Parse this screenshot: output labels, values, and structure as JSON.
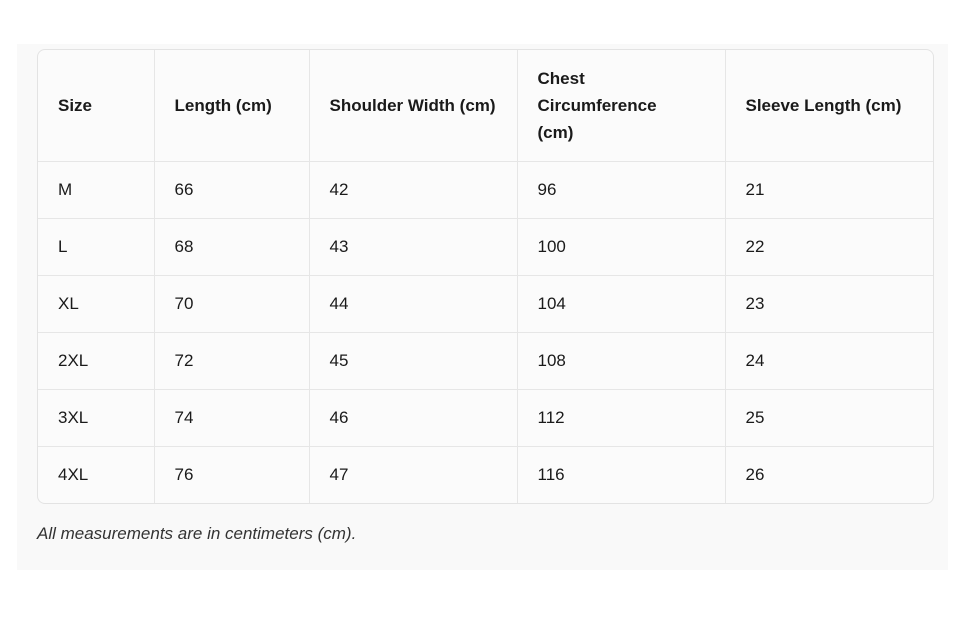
{
  "table": {
    "header": [
      "Size",
      "Length (cm)",
      "Shoulder Width (cm)",
      "Chest Circumference (cm)",
      "Sleeve Length (cm)"
    ],
    "rows": [
      [
        "M",
        "66",
        "42",
        "96",
        "21"
      ],
      [
        "L",
        "68",
        "43",
        "100",
        "22"
      ],
      [
        "XL",
        "70",
        "44",
        "104",
        "23"
      ],
      [
        "2XL",
        "72",
        "45",
        "108",
        "24"
      ],
      [
        "3XL",
        "74",
        "46",
        "112",
        "25"
      ],
      [
        "4XL",
        "76",
        "47",
        "116",
        "26"
      ]
    ]
  },
  "footnote": "All measurements are in centimeters (cm)."
}
